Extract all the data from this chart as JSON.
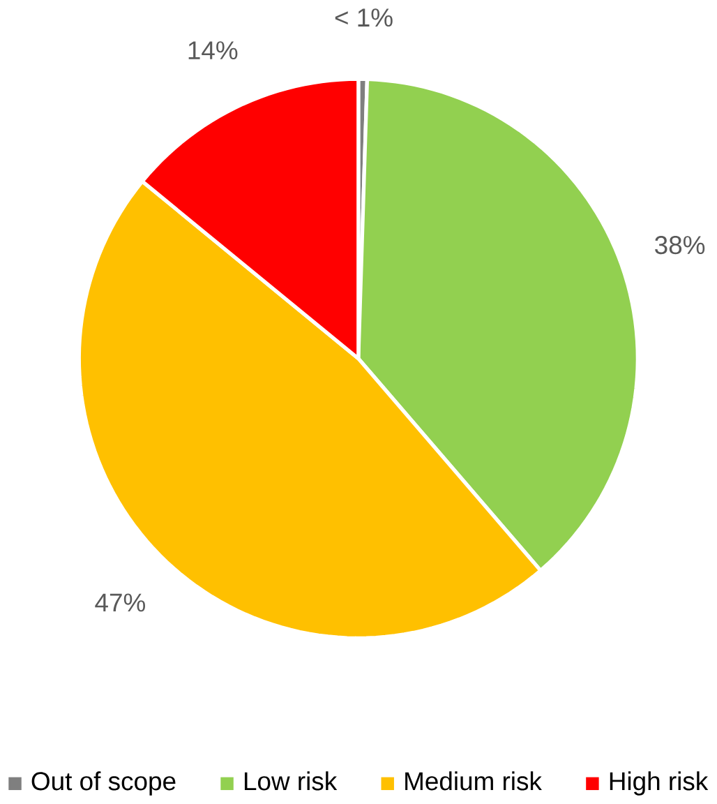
{
  "chart_data": {
    "type": "pie",
    "categories": [
      "Out of scope",
      "Low risk",
      "Medium risk",
      "High risk"
    ],
    "values": [
      0.5,
      38,
      47,
      14
    ],
    "value_labels": [
      "< 1%",
      "38%",
      "47%",
      "14%"
    ],
    "colors": [
      "#7f7f7f",
      "#92d050",
      "#ffc000",
      "#ff0000"
    ],
    "legend": "bottom"
  }
}
